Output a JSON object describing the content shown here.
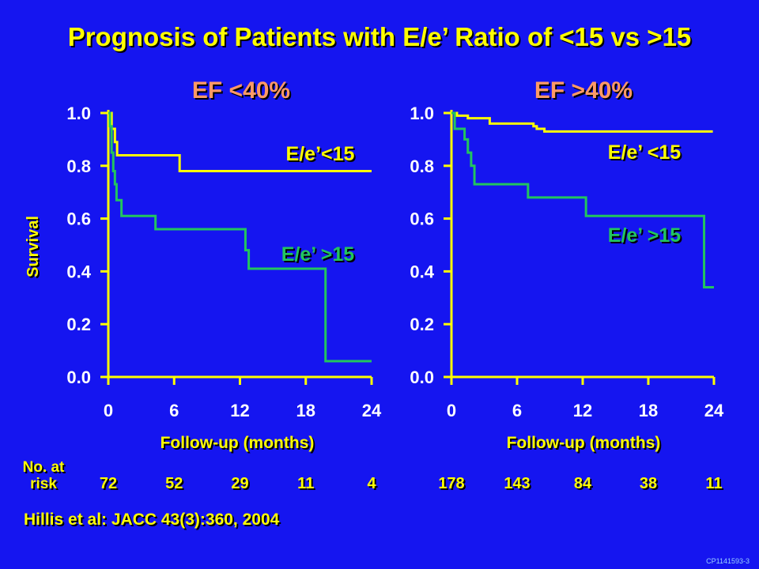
{
  "slide": {
    "title": "Prognosis of Patients with E/e’ Ratio of <15 vs >15",
    "y_axis_label": "Survival",
    "risk_label": "No. at risk",
    "citation": "Hillis et al:  JACC 43(3):360, 2004",
    "code": "CP1141593-3"
  },
  "colors": {
    "background": "#1515f0",
    "axis": "#ffff00",
    "panel_title": "#ff9966",
    "low_ratio": "#ffff00",
    "high_ratio": "#22c55e"
  },
  "chart_data": [
    {
      "type": "line",
      "title": "EF <40%",
      "xlabel": "Follow-up (months)",
      "ylabel": "Survival",
      "xlim": [
        0,
        24
      ],
      "ylim": [
        0,
        1.0
      ],
      "x_ticks": [
        "0",
        "6",
        "12",
        "18",
        "24"
      ],
      "y_ticks": [
        "0.0",
        "0.2",
        "0.4",
        "0.6",
        "0.8",
        "1.0"
      ],
      "series": [
        {
          "name": "E/e’<15",
          "color": "#ffff00",
          "steps": [
            [
              0,
              1.0
            ],
            [
              0.3,
              0.94
            ],
            [
              0.6,
              0.89
            ],
            [
              0.8,
              0.84
            ],
            [
              6.5,
              0.78
            ],
            [
              24,
              0.78
            ]
          ]
        },
        {
          "name": "E/e’ >15",
          "color": "#22c55e",
          "steps": [
            [
              0,
              1.0
            ],
            [
              0.15,
              0.95
            ],
            [
              0.3,
              0.85
            ],
            [
              0.45,
              0.78
            ],
            [
              0.6,
              0.73
            ],
            [
              0.75,
              0.67
            ],
            [
              1.2,
              0.61
            ],
            [
              4.3,
              0.56
            ],
            [
              12.5,
              0.48
            ],
            [
              12.8,
              0.41
            ],
            [
              19.8,
              0.06
            ],
            [
              24,
              0.06
            ]
          ]
        }
      ],
      "at_risk": [
        "72",
        "52",
        "29",
        "11",
        "4"
      ]
    },
    {
      "type": "line",
      "title": "EF >40%",
      "xlabel": "Follow-up (months)",
      "ylabel": "",
      "xlim": [
        0,
        24
      ],
      "ylim": [
        0,
        1.0
      ],
      "x_ticks": [
        "0",
        "6",
        "12",
        "18",
        "24"
      ],
      "y_ticks": [
        "0.0",
        "0.2",
        "0.4",
        "0.6",
        "0.8",
        "1.0"
      ],
      "series": [
        {
          "name": "E/e’ <15",
          "color": "#ffff00",
          "steps": [
            [
              0,
              1.0
            ],
            [
              0.5,
              0.99
            ],
            [
              1.5,
              0.98
            ],
            [
              3.5,
              0.96
            ],
            [
              7.5,
              0.95
            ],
            [
              7.8,
              0.94
            ],
            [
              8.5,
              0.93
            ],
            [
              23.9,
              0.93
            ]
          ]
        },
        {
          "name": "E/e’ >15",
          "color": "#22c55e",
          "steps": [
            [
              0,
              1.0
            ],
            [
              0.3,
              0.94
            ],
            [
              1.2,
              0.9
            ],
            [
              1.5,
              0.85
            ],
            [
              1.8,
              0.8
            ],
            [
              2.1,
              0.73
            ],
            [
              7.0,
              0.68
            ],
            [
              12.3,
              0.61
            ],
            [
              23.1,
              0.34
            ],
            [
              24,
              0.34
            ]
          ]
        }
      ],
      "at_risk": [
        "178",
        "143",
        "84",
        "38",
        "11"
      ]
    }
  ]
}
